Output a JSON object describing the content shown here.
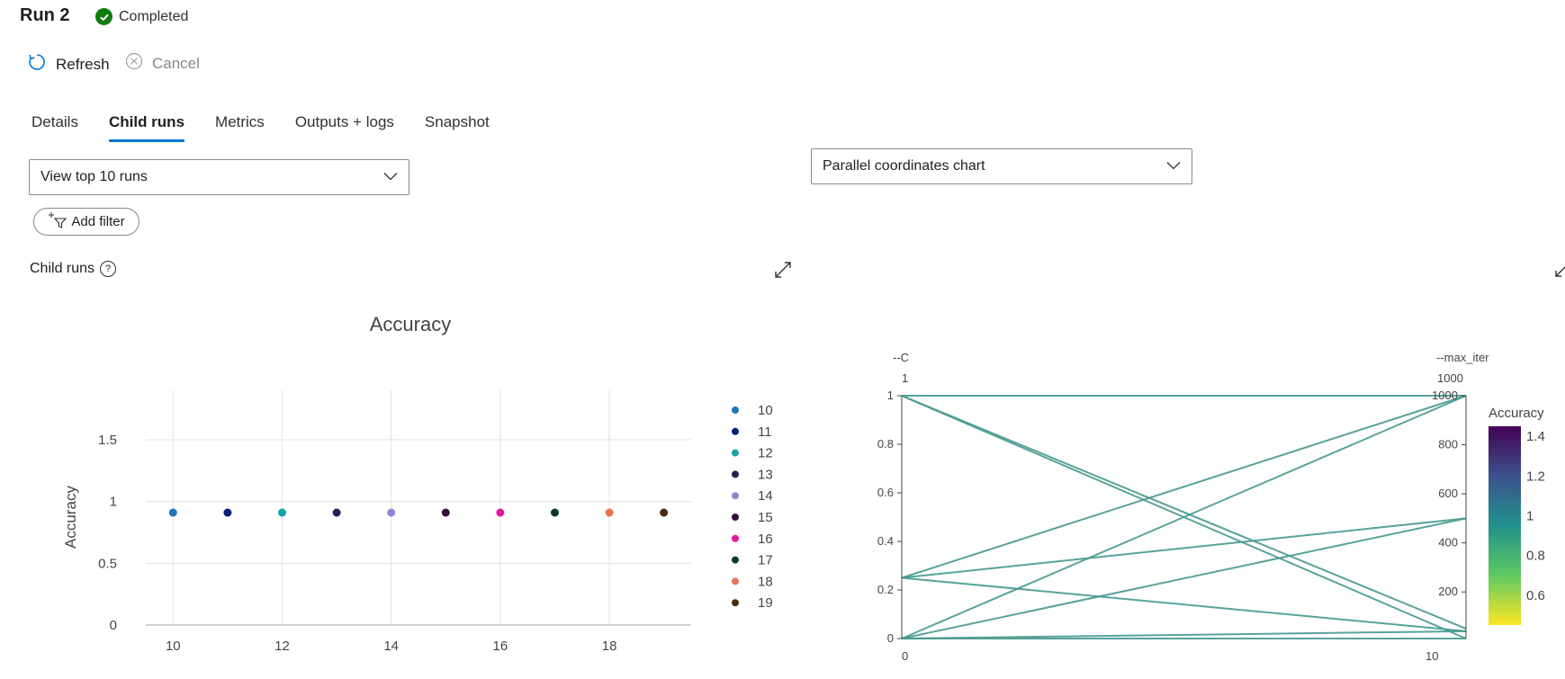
{
  "header": {
    "title": "Run 2",
    "status": "Completed",
    "status_color": "#107c10"
  },
  "toolbar": {
    "refresh_label": "Refresh",
    "cancel_label": "Cancel"
  },
  "tabs": [
    {
      "label": "Details",
      "active": false
    },
    {
      "label": "Child runs",
      "active": true
    },
    {
      "label": "Metrics",
      "active": false
    },
    {
      "label": "Outputs + logs",
      "active": false
    },
    {
      "label": "Snapshot",
      "active": false
    }
  ],
  "view_dropdown": {
    "selected": "View top 10 runs"
  },
  "chart_dropdown": {
    "selected": "Parallel coordinates chart"
  },
  "filter": {
    "label": "Add filter"
  },
  "section": {
    "title": "Child runs",
    "help": "?"
  },
  "accent_color": "#0078d4",
  "chart_data": [
    {
      "type": "scatter",
      "title": "Accuracy",
      "xlabel": "",
      "ylabel": "Accuracy",
      "xlim": [
        9.5,
        19.5
      ],
      "ylim": [
        0,
        1.9
      ],
      "x_ticks": [
        "10",
        "12",
        "14",
        "16",
        "18"
      ],
      "y_ticks": [
        "0",
        "0.5",
        "1",
        "1.5"
      ],
      "x_tick_values": [
        10,
        12,
        14,
        16,
        18
      ],
      "y_tick_values": [
        0,
        0.5,
        1,
        1.5
      ],
      "grid": true,
      "legend_position": "right",
      "series": [
        {
          "name": "10",
          "x": 10,
          "y": 0.91,
          "color": "#1f77b4"
        },
        {
          "name": "11",
          "x": 11,
          "y": 0.91,
          "color": "#001f7a"
        },
        {
          "name": "12",
          "x": 12,
          "y": 0.91,
          "color": "#17a2a8"
        },
        {
          "name": "13",
          "x": 13,
          "y": 0.91,
          "color": "#2b1b4e"
        },
        {
          "name": "14",
          "x": 14,
          "y": 0.91,
          "color": "#8c87d0"
        },
        {
          "name": "15",
          "x": 15,
          "y": 0.91,
          "color": "#3a0a3f"
        },
        {
          "name": "16",
          "x": 16,
          "y": 0.91,
          "color": "#e3179a"
        },
        {
          "name": "17",
          "x": 17,
          "y": 0.91,
          "color": "#0a3a2a"
        },
        {
          "name": "18",
          "x": 18,
          "y": 0.91,
          "color": "#e8735a"
        },
        {
          "name": "19",
          "x": 19,
          "y": 0.91,
          "color": "#4a2a0a"
        }
      ]
    },
    {
      "type": "parallel_coordinates",
      "axes": [
        {
          "label": "--C",
          "range": [
            0,
            1
          ],
          "top_label": "1",
          "bottom_label": "0",
          "ticks": [
            "0",
            "0.2",
            "0.4",
            "0.6",
            "0.8",
            "1"
          ],
          "tick_values": [
            0,
            0.2,
            0.4,
            0.6,
            0.8,
            1
          ]
        },
        {
          "label": "--max_iter",
          "range": [
            10,
            1000
          ],
          "top_label": "1000",
          "bottom_label": "10",
          "ticks": [
            "200",
            "400",
            "600",
            "800",
            "1000"
          ],
          "tick_values": [
            200,
            400,
            600,
            800,
            1000
          ]
        }
      ],
      "line_color": "#46998f",
      "lines": [
        {
          "C": 1,
          "max_iter": 1000
        },
        {
          "C": 1,
          "max_iter": 10
        },
        {
          "C": 1,
          "max_iter": 50
        },
        {
          "C": 0.25,
          "max_iter": 1000
        },
        {
          "C": 0.25,
          "max_iter": 500
        },
        {
          "C": 0.25,
          "max_iter": 40
        },
        {
          "C": 0,
          "max_iter": 1000
        },
        {
          "C": 0,
          "max_iter": 500
        },
        {
          "C": 0,
          "max_iter": 40
        },
        {
          "C": 0,
          "max_iter": 10
        }
      ],
      "colorbar": {
        "title": "Accuracy",
        "ticks": [
          "1.4",
          "1.2",
          "1",
          "0.8",
          "0.6"
        ],
        "tick_values": [
          1.4,
          1.2,
          1,
          0.8,
          0.6
        ],
        "range": [
          0.45,
          1.45
        ],
        "colors": [
          "#440154",
          "#3b528b",
          "#21918c",
          "#5ec962",
          "#fde725"
        ]
      }
    }
  ]
}
